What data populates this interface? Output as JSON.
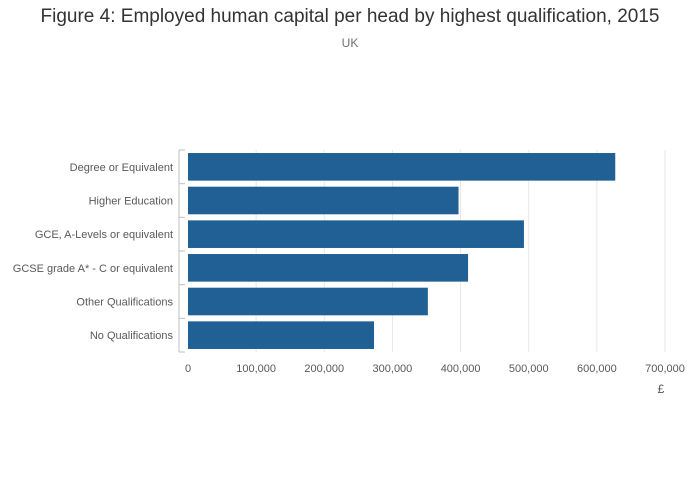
{
  "chart_data": {
    "type": "bar",
    "orientation": "horizontal",
    "title": "Figure 4: Employed human capital per head by highest qualification, 2015",
    "subtitle": "UK",
    "xlabel": "£",
    "ylabel": "",
    "categories": [
      "Degree or Equivalent",
      "Higher Education",
      "GCE, A-Levels or equivalent",
      "GCSE grade A* - C or equivalent",
      "Other Qualifications",
      "No Qualifications"
    ],
    "values": [
      627000,
      397000,
      493000,
      411000,
      352000,
      273000
    ],
    "xlim": [
      0,
      700000
    ],
    "xticks": [
      0,
      100000,
      200000,
      300000,
      400000,
      500000,
      600000,
      700000
    ],
    "xtick_labels": [
      "0",
      "100,000",
      "200,000",
      "300,000",
      "400,000",
      "500,000",
      "600,000",
      "700,000"
    ],
    "grid": true,
    "legend": "none",
    "bar_color": "#206095",
    "grid_color": "#e6e6e6",
    "axis_color": "#bfbfbf"
  }
}
